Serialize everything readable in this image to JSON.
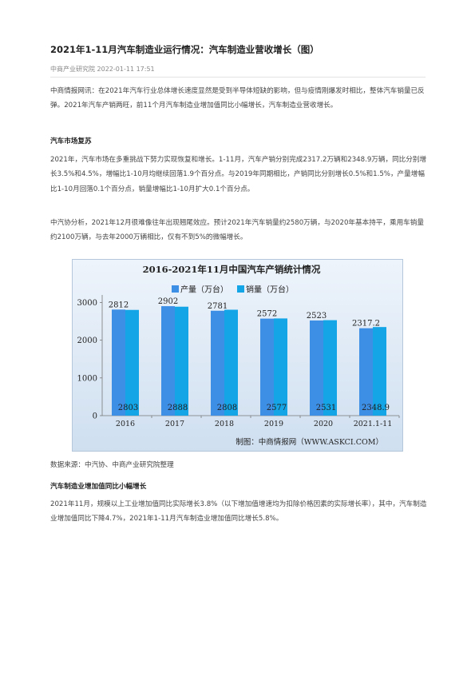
{
  "article": {
    "title": "2021年1-11月汽车制造业运行情况：汽车制造业营收增长（图）",
    "meta": "中商产业研究院 2022-01-11 17:51",
    "intro": "中商情报网讯：在2021年汽车行业总体增长速度显然是受到半导体短缺的影响，但与疫情刚爆发时相比，整体汽车销量已反弹。2021年汽车产销两旺，前11个月汽车制造业增加值同比小幅增长，汽车制造业营收增长。",
    "section1_title": "汽车市场复苏",
    "section1_p1": "2021年，汽车市场在多重挑战下努力实现恢复和增长。1-11月，汽车产销分别完成2317.2万辆和2348.9万辆，同比分别增长3.5%和4.5%，增幅比1-10月均继续回落1.9个百分点。与2019年同期相比，产销同比分别增长0.5%和1.5%，产量增幅比1-10月回落0.1个百分点，销量增幅比1-10月扩大0.1个百分点。",
    "section1_p2": "中汽协分析，2021年12月很难像往年出现翘尾效应。预计2021年汽车销量约2580万辆，与2020年基本持平，乘用车销量约2100万辆，与去年2000万辆相比，仅有不到5%的微幅增长。",
    "source": "数据来源：中汽协、中商产业研究院整理",
    "section2_title": "汽车制造业增加值同比小幅增长",
    "section2_p1": "2021年11月，规模以上工业增加值同比实际增长3.8%（以下增加值增速均为扣除价格因素的实际增长率），其中，汽车制造业增加值同比下降4.7%，2021年1-11月汽车制造业增加值同比增长5.8%。"
  },
  "chart_data": {
    "type": "bar",
    "title": "2016-2021年11月中国汽车产销统计情况",
    "categories": [
      "2016",
      "2017",
      "2018",
      "2019",
      "2020",
      "2021.1-11"
    ],
    "series": [
      {
        "name": "产量（万台）",
        "values": [
          2812,
          2902,
          2781,
          2572,
          2523,
          2317.2
        ],
        "labels": [
          "2812",
          "2902",
          "2781",
          "2572",
          "2523",
          "2317.2"
        ]
      },
      {
        "name": "销量（万台）",
        "values": [
          2803,
          2888,
          2808,
          2577,
          2531,
          2348.9
        ],
        "labels": [
          "2803",
          "2888",
          "2808",
          "2577",
          "2531",
          "2348.9"
        ]
      }
    ],
    "yticks": [
      0,
      1000,
      2000,
      3000
    ],
    "ylim": [
      0,
      3200
    ],
    "legend_position": "top",
    "grid": false,
    "footer": "制图：中商情报网（WWW.ASKCI.COM）",
    "colors": {
      "series1": "#3d8fe6",
      "series2": "#14a5e6",
      "background_top": "#eef4fb",
      "background_bottom": "#cfdff0",
      "frame": "#b5c7da"
    }
  }
}
